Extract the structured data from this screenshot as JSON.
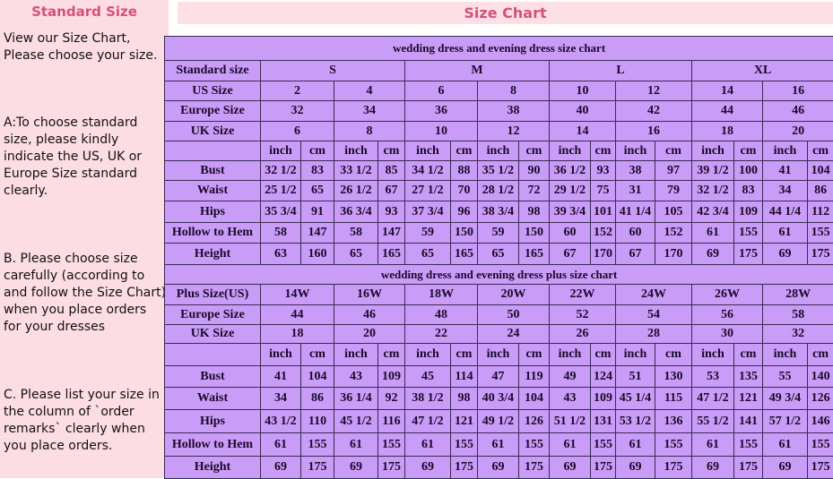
{
  "left_panel": {
    "heading": "Standard Size",
    "paragraphs": [
      "View our Size Chart, Please choose your size.",
      "A:To choose standard size, please kindly indicate the US, UK or Europe Size standard clearly.",
      "B. Please choose size carefully (according to and follow the Size Chart) when you place orders for your dresses",
      "C. Please list your size in the column of `order remarks` clearly when you place orders."
    ]
  },
  "header": {
    "title": "Size Chart"
  },
  "colors": {
    "table_bg": "#c99cf7",
    "panel_bg": "#fcdde3",
    "heading": "#d6507f"
  },
  "standard_chart": {
    "caption": "wedding dress and evening dress size chart",
    "groups_label": "Standard size",
    "groups": [
      "S",
      "M",
      "L",
      "XL"
    ],
    "size_rows": [
      {
        "label": "US Size",
        "values": [
          "2",
          "4",
          "6",
          "8",
          "10",
          "12",
          "14",
          "16"
        ]
      },
      {
        "label": "Europe Size",
        "values": [
          "32",
          "34",
          "36",
          "38",
          "40",
          "42",
          "44",
          "46"
        ]
      },
      {
        "label": "UK Size",
        "values": [
          "6",
          "8",
          "10",
          "12",
          "14",
          "16",
          "18",
          "20"
        ]
      }
    ],
    "unit_labels": [
      "inch",
      "cm"
    ],
    "measure_rows": [
      {
        "label": "Bust",
        "values": [
          "32 1/2",
          "83",
          "33 1/2",
          "85",
          "34 1/2",
          "88",
          "35 1/2",
          "90",
          "36 1/2",
          "93",
          "38",
          "97",
          "39 1/2",
          "100",
          "41",
          "104"
        ]
      },
      {
        "label": "Waist",
        "values": [
          "25 1/2",
          "65",
          "26 1/2",
          "67",
          "27 1/2",
          "70",
          "28 1/2",
          "72",
          "29 1/2",
          "75",
          "31",
          "79",
          "32 1/2",
          "83",
          "34",
          "86"
        ]
      },
      {
        "label": "Hips",
        "values": [
          "35 3/4",
          "91",
          "36 3/4",
          "93",
          "37 3/4",
          "96",
          "38 3/4",
          "98",
          "39 3/4",
          "101",
          "41 1/4",
          "105",
          "42 3/4",
          "109",
          "44 1/4",
          "112"
        ]
      },
      {
        "label": "Hollow to Hem",
        "values": [
          "58",
          "147",
          "58",
          "147",
          "59",
          "150",
          "59",
          "150",
          "60",
          "152",
          "60",
          "152",
          "61",
          "155",
          "61",
          "155"
        ]
      },
      {
        "label": "Height",
        "values": [
          "63",
          "160",
          "65",
          "165",
          "65",
          "165",
          "65",
          "165",
          "67",
          "170",
          "67",
          "170",
          "69",
          "175",
          "69",
          "175"
        ]
      }
    ]
  },
  "plus_chart": {
    "caption": "wedding dress and evening dress plus size chart",
    "size_rows": [
      {
        "label": "Plus Size(US)",
        "values": [
          "14W",
          "16W",
          "18W",
          "20W",
          "22W",
          "24W",
          "26W",
          "28W"
        ]
      },
      {
        "label": "Europe Size",
        "values": [
          "44",
          "46",
          "48",
          "50",
          "52",
          "54",
          "56",
          "58"
        ]
      },
      {
        "label": "UK Size",
        "values": [
          "18",
          "20",
          "22",
          "24",
          "26",
          "28",
          "30",
          "32"
        ]
      }
    ],
    "unit_labels": [
      "inch",
      "cm"
    ],
    "measure_rows": [
      {
        "label": "Bust",
        "values": [
          "41",
          "104",
          "43",
          "109",
          "45",
          "114",
          "47",
          "119",
          "49",
          "124",
          "51",
          "130",
          "53",
          "135",
          "55",
          "140"
        ]
      },
      {
        "label": "Waist",
        "values": [
          "34",
          "86",
          "36 1/4",
          "92",
          "38 1/2",
          "98",
          "40 3/4",
          "104",
          "43",
          "109",
          "45 1/4",
          "115",
          "47 1/2",
          "121",
          "49 3/4",
          "126"
        ]
      },
      {
        "label": "Hips",
        "values": [
          "43 1/2",
          "110",
          "45 1/2",
          "116",
          "47 1/2",
          "121",
          "49 1/2",
          "126",
          "51 1/2",
          "131",
          "53 1/2",
          "136",
          "55 1/2",
          "141",
          "57 1/2",
          "146"
        ]
      },
      {
        "label": "Hollow to Hem",
        "values": [
          "61",
          "155",
          "61",
          "155",
          "61",
          "155",
          "61",
          "155",
          "61",
          "155",
          "61",
          "155",
          "61",
          "155",
          "61",
          "155"
        ]
      },
      {
        "label": "Height",
        "values": [
          "69",
          "175",
          "69",
          "175",
          "69",
          "175",
          "69",
          "175",
          "69",
          "175",
          "69",
          "175",
          "69",
          "175",
          "69",
          "175"
        ]
      }
    ]
  }
}
